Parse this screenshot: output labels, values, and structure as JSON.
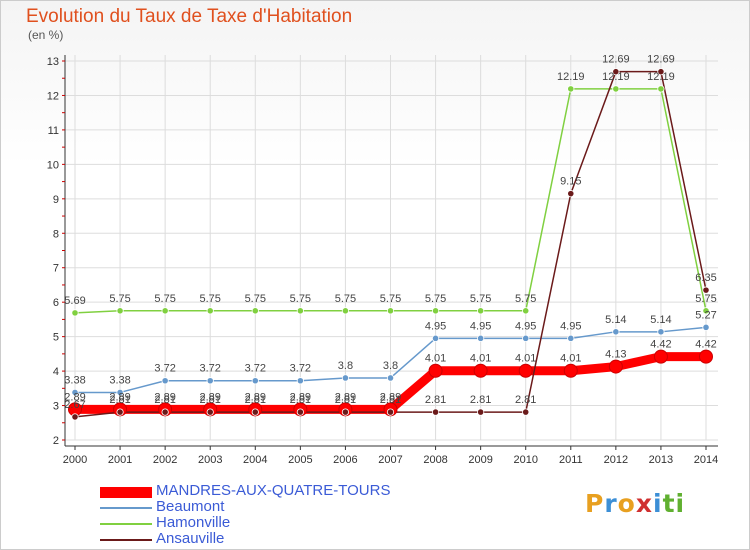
{
  "title": "Evolution du Taux de Taxe d'Habitation",
  "unit_label": "(en %)",
  "logo": {
    "letters": [
      "P",
      "r",
      "o",
      "x",
      "i",
      "t",
      "i"
    ],
    "colors": [
      "#e8a020",
      "#3c8fd6",
      "#e8a020",
      "#d03030",
      "#3c8fd6",
      "#60b030",
      "#60b030"
    ]
  },
  "chart_data": {
    "type": "line",
    "x": [
      "2000",
      "2001",
      "2002",
      "2003",
      "2004",
      "2005",
      "2006",
      "2007",
      "2008",
      "2009",
      "2010",
      "2011",
      "2012",
      "2013",
      "2014"
    ],
    "ylim": [
      2,
      13
    ],
    "yticks": [
      "2",
      "3",
      "4",
      "5",
      "6",
      "7",
      "8",
      "9",
      "10",
      "11",
      "12",
      "13"
    ],
    "grid": true,
    "legend_position": "bottom-left",
    "series": [
      {
        "name": "MANDRES-AUX-QUATRE-TOURS",
        "color": "#ff0000",
        "thick": true,
        "values": [
          2.89,
          2.89,
          2.89,
          2.89,
          2.89,
          2.89,
          2.89,
          2.89,
          4.01,
          4.01,
          4.01,
          4.01,
          4.13,
          4.42,
          4.42
        ],
        "labels": [
          "2.89",
          "2.89",
          "2.89",
          "2.89",
          "2.89",
          "2.89",
          "2.89",
          "2.89",
          "4.01",
          "4.01",
          "4.01",
          "4.01",
          "4.13",
          "4.42",
          "4.42"
        ]
      },
      {
        "name": "Beaumont",
        "color": "#6699cc",
        "thick": false,
        "values": [
          3.38,
          3.38,
          3.72,
          3.72,
          3.72,
          3.72,
          3.8,
          3.8,
          4.95,
          4.95,
          4.95,
          4.95,
          5.14,
          5.14,
          5.27
        ],
        "labels": [
          "3.38",
          "3.38",
          "3.72",
          "3.72",
          "3.72",
          "3.72",
          "3.8",
          "3.8",
          "4.95",
          "4.95",
          "4.95",
          "4.95",
          "5.14",
          "5.14",
          "5.27"
        ]
      },
      {
        "name": "Hamonville",
        "color": "#80d040",
        "thick": false,
        "values": [
          5.69,
          5.75,
          5.75,
          5.75,
          5.75,
          5.75,
          5.75,
          5.75,
          5.75,
          5.75,
          5.75,
          12.19,
          12.19,
          12.19,
          5.75
        ],
        "labels": [
          "5.69",
          "5.75",
          "5.75",
          "5.75",
          "5.75",
          "5.75",
          "5.75",
          "5.75",
          "5.75",
          "5.75",
          "5.75",
          "12.19",
          "12.19",
          "12.19",
          "5.75"
        ]
      },
      {
        "name": "Ansauville",
        "color": "#6b1a1a",
        "thick": false,
        "values": [
          2.67,
          2.81,
          2.81,
          2.81,
          2.81,
          2.81,
          2.81,
          2.81,
          2.81,
          2.81,
          2.81,
          9.15,
          12.69,
          12.69,
          6.35
        ],
        "labels": [
          "2.67",
          "2.81",
          "2.81",
          "2.81",
          "2.81",
          "2.81",
          "2.81",
          "2.81",
          "2.81",
          "2.81",
          "2.81",
          "9.15",
          "12.69",
          "12.69",
          "6.35"
        ]
      }
    ]
  }
}
